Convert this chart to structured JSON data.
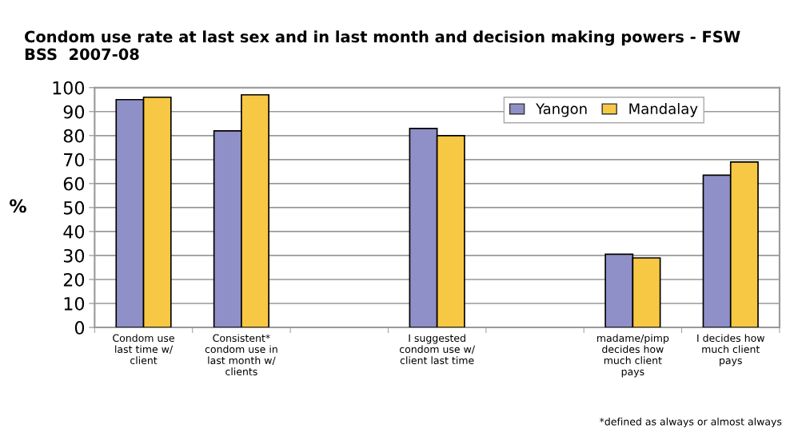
{
  "chart_data": {
    "type": "bar",
    "title": "Condom use rate at last sex and in last month and decision making powers - FSW\nBSS  2007-08",
    "ylabel": "%",
    "categories": [
      "Condom use\nlast time w/\nclient",
      "Consistent*\ncondom use in\nlast month w/\nclients",
      null,
      "I suggested\ncondom use w/\nclient last time",
      null,
      "madame/pimp\ndecides how\nmuch client\npays",
      "I decides how\nmuch client\npays"
    ],
    "series": [
      {
        "name": "Yangon",
        "color": "#9090c8",
        "values": [
          95,
          82,
          null,
          83,
          null,
          30.5,
          63.5
        ]
      },
      {
        "name": "Mandalay",
        "color": "#f7c843",
        "values": [
          96,
          97,
          null,
          80,
          null,
          29,
          69
        ]
      }
    ],
    "ylim": [
      0,
      100
    ],
    "yticks": [
      0,
      10,
      20,
      30,
      40,
      50,
      60,
      70,
      80,
      90,
      100
    ],
    "grid": "y",
    "legend": "top right",
    "annotations": [
      "*defined as always or almost always"
    ]
  }
}
